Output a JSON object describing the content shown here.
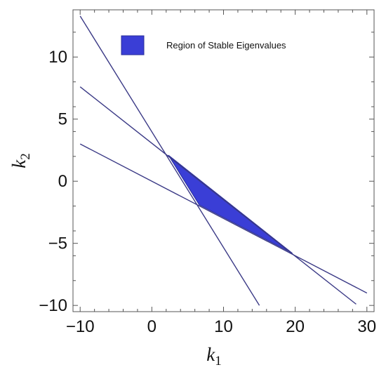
{
  "chart_data": {
    "type": "area",
    "title": "",
    "xlabel": {
      "main": "k",
      "sub": "1"
    },
    "ylabel": {
      "main": "k",
      "sub": "2"
    },
    "xlim": [
      -11,
      31
    ],
    "ylim": [
      -10.5,
      13.8
    ],
    "xticks": [
      {
        "value": -10,
        "label": "−10"
      },
      {
        "value": 0,
        "label": "0"
      },
      {
        "value": 10,
        "label": "10"
      },
      {
        "value": 20,
        "label": "20"
      },
      {
        "value": 30,
        "label": "30"
      }
    ],
    "yticks": [
      {
        "value": -10,
        "label": "−10"
      },
      {
        "value": -5,
        "label": "−5"
      },
      {
        "value": 0,
        "label": "0"
      },
      {
        "value": 5,
        "label": "5"
      },
      {
        "value": 10,
        "label": "10"
      }
    ],
    "minor_tick_step": 2,
    "grid": false,
    "lines": [
      {
        "x": [
          -10,
          15
        ],
        "y": [
          13.3,
          -10
        ]
      },
      {
        "x": [
          -10,
          28.5
        ],
        "y": [
          7.6,
          -9.9
        ]
      },
      {
        "x": [
          -10,
          30
        ],
        "y": [
          3.0,
          -9.0
        ]
      }
    ],
    "regions": [
      {
        "name": "Region of Stable Eigenvalues",
        "vertices": [
          [
            2.3,
            2.1
          ],
          [
            6.6,
            -1.9
          ],
          [
            19.6,
            -5.8
          ]
        ]
      }
    ],
    "legend": {
      "position": "top-left",
      "entries": [
        "Region of Stable Eigenvalues"
      ]
    },
    "colors": {
      "region_fill": "#3a3ed6",
      "region_edge": "#2a2e9a",
      "line": "#3b3a86",
      "frame": "#555555"
    }
  }
}
